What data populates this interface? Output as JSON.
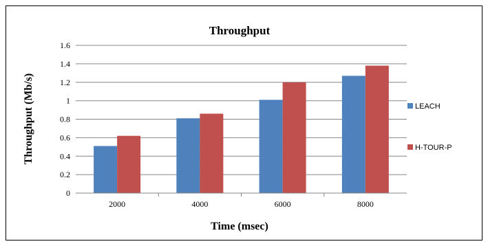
{
  "chart_data": {
    "type": "bar",
    "title": "Throughput",
    "xlabel": "Time (msec)",
    "ylabel": "Throughput (Mb/s)",
    "categories": [
      "2000",
      "4000",
      "6000",
      "8000"
    ],
    "ylim": [
      0,
      1.6
    ],
    "yticks": [
      "0",
      "0.2",
      "0.4",
      "0.6",
      "0.8",
      "1",
      "1.2",
      "1.4",
      "1.6"
    ],
    "grid": true,
    "legend_position": "right",
    "series": [
      {
        "name": "LEACH",
        "color": "#4f81bd",
        "values": [
          0.51,
          0.81,
          1.01,
          1.27
        ]
      },
      {
        "name": "H-TOUR-P",
        "color": "#c0504d",
        "values": [
          0.62,
          0.86,
          1.2,
          1.38
        ]
      }
    ]
  }
}
